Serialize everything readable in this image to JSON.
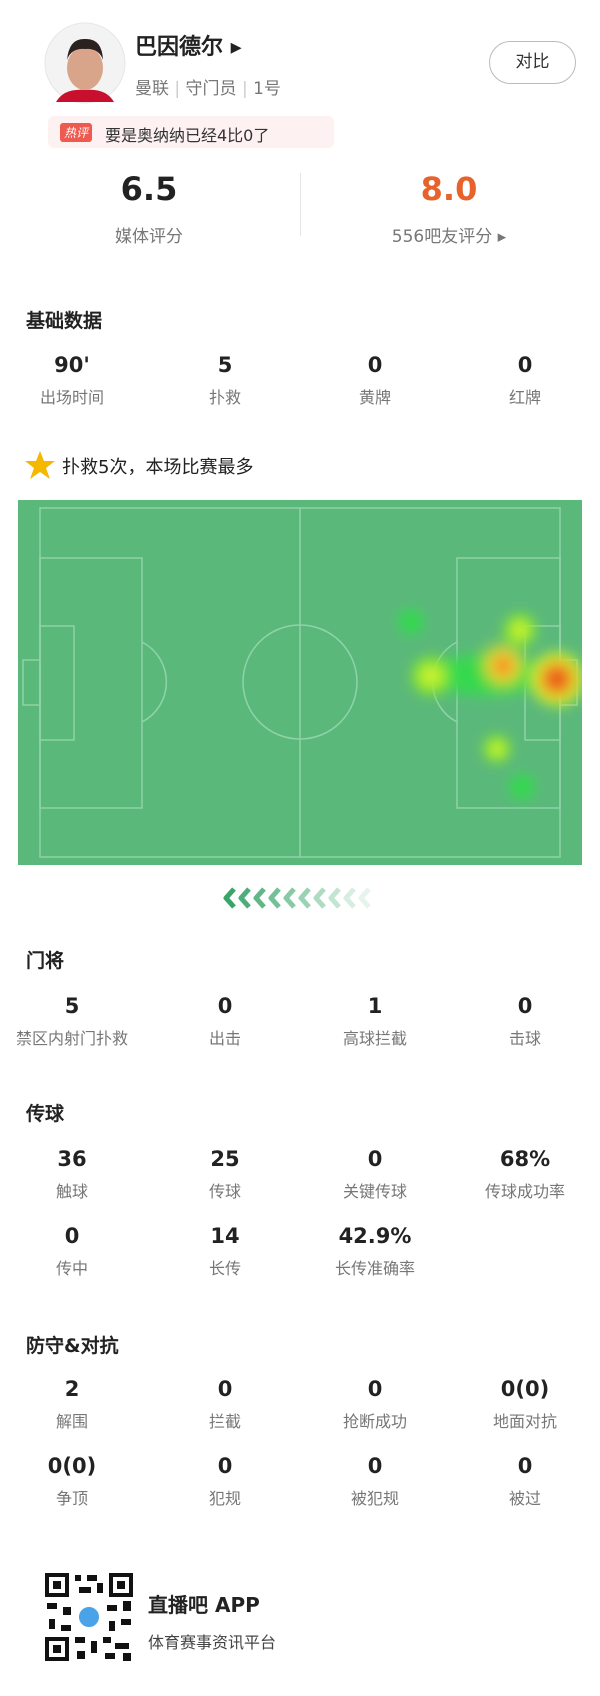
{
  "header": {
    "name": "巴因德尔",
    "team": "曼联",
    "position": "守门员",
    "number": "1号",
    "compare": "对比",
    "hot_tag": "热评",
    "hot_text": "要是奥纳纳已经4比0了"
  },
  "ratings": {
    "media_score": "6.5",
    "media_label": "媒体评分",
    "fan_score": "8.0",
    "fan_label": "556吧友评分"
  },
  "sections": [
    {
      "title": "基础数据",
      "items": [
        {
          "value": "90'",
          "label": "出场时间"
        },
        {
          "value": "5",
          "label": "扑救"
        },
        {
          "value": "0",
          "label": "黄牌"
        },
        {
          "value": "0",
          "label": "红牌"
        }
      ]
    },
    {
      "title": "门将",
      "items": [
        {
          "value": "5",
          "label": "禁区内射门扑救"
        },
        {
          "value": "0",
          "label": "出击"
        },
        {
          "value": "1",
          "label": "高球拦截"
        },
        {
          "value": "0",
          "label": "击球"
        }
      ]
    },
    {
      "title": "传球",
      "items": [
        {
          "value": "36",
          "label": "触球"
        },
        {
          "value": "25",
          "label": "传球"
        },
        {
          "value": "0",
          "label": "关键传球"
        },
        {
          "value": "68%",
          "label": "传球成功率"
        },
        {
          "value": "0",
          "label": "传中"
        },
        {
          "value": "14",
          "label": "长传"
        },
        {
          "value": "42.9%",
          "label": "长传准确率"
        }
      ]
    },
    {
      "title": "防守&对抗",
      "items": [
        {
          "value": "2",
          "label": "解围"
        },
        {
          "value": "0",
          "label": "拦截"
        },
        {
          "value": "0",
          "label": "抢断成功"
        },
        {
          "value": "0(0)",
          "label": "地面对抗"
        },
        {
          "value": "0(0)",
          "label": "争顶"
        },
        {
          "value": "0",
          "label": "犯规"
        },
        {
          "value": "0",
          "label": "被犯规"
        },
        {
          "value": "0",
          "label": "被过"
        }
      ]
    }
  ],
  "highlight": "扑救5次，本场比赛最多",
  "footer": {
    "app": "直播吧 APP",
    "slogan": "体育赛事资讯平台"
  }
}
